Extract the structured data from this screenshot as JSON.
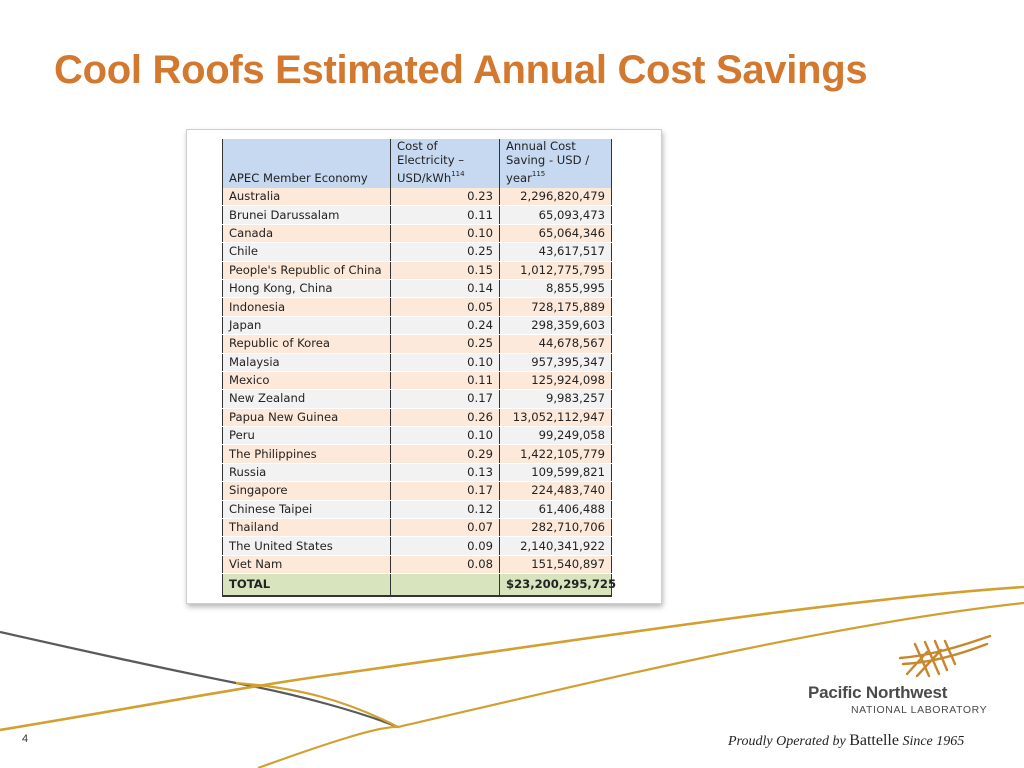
{
  "slide": {
    "title": "Cool Roofs Estimated Annual Cost Savings",
    "page_number": "4",
    "accent_color": "#D2782F"
  },
  "table": {
    "headers": {
      "economy": "APEC Member Economy",
      "cost_line1": "Cost of",
      "cost_line2": "Electricity –",
      "cost_line3": "USD/kWh",
      "cost_ref": "114",
      "saving_line1": "Annual Cost",
      "saving_line2": "Saving - USD /",
      "saving_line3": "year",
      "saving_ref": "115"
    },
    "rows": [
      {
        "economy": "Australia",
        "cost": "0.23",
        "saving": "2,296,820,479"
      },
      {
        "economy": "Brunei Darussalam",
        "cost": "0.11",
        "saving": "65,093,473"
      },
      {
        "economy": "Canada",
        "cost": "0.10",
        "saving": "65,064,346"
      },
      {
        "economy": "Chile",
        "cost": "0.25",
        "saving": "43,617,517"
      },
      {
        "economy": "People's Republic of China",
        "cost": "0.15",
        "saving": "1,012,775,795"
      },
      {
        "economy": "Hong Kong, China",
        "cost": "0.14",
        "saving": "8,855,995"
      },
      {
        "economy": "Indonesia",
        "cost": "0.05",
        "saving": "728,175,889"
      },
      {
        "economy": "Japan",
        "cost": "0.24",
        "saving": "298,359,603"
      },
      {
        "economy": "Republic of Korea",
        "cost": "0.25",
        "saving": "44,678,567"
      },
      {
        "economy": "Malaysia",
        "cost": "0.10",
        "saving": "957,395,347"
      },
      {
        "economy": "Mexico",
        "cost": "0.11",
        "saving": "125,924,098"
      },
      {
        "economy": "New Zealand",
        "cost": "0.17",
        "saving": "9,983,257"
      },
      {
        "economy": "Papua New Guinea",
        "cost": "0.26",
        "saving": "13,052,112,947"
      },
      {
        "economy": "Peru",
        "cost": "0.10",
        "saving": "99,249,058"
      },
      {
        "economy": "The Philippines",
        "cost": "0.29",
        "saving": "1,422,105,779"
      },
      {
        "economy": "Russia",
        "cost": "0.13",
        "saving": "109,599,821"
      },
      {
        "economy": "Singapore",
        "cost": "0.17",
        "saving": "224,483,740"
      },
      {
        "economy": "Chinese Taipei",
        "cost": "0.12",
        "saving": "61,406,488"
      },
      {
        "economy": "Thailand",
        "cost": "0.07",
        "saving": "282,710,706"
      },
      {
        "economy": "The United States",
        "cost": "0.09",
        "saving": "2,140,341,922"
      },
      {
        "economy": "Viet Nam",
        "cost": "0.08",
        "saving": "151,540,897"
      }
    ],
    "total": {
      "label": "TOTAL",
      "cost": "",
      "saving": "$23,200,295,725"
    },
    "colors": {
      "header_bg": "#C6D9F1",
      "row_odd_bg": "#FDE9D9",
      "row_even_bg": "#F2F2F2",
      "total_bg": "#D7E4BD"
    }
  },
  "logo": {
    "name": "Pacific Northwest",
    "sub": "NATIONAL LABORATORY",
    "icon": "pnnl-logo-icon"
  },
  "tagline": {
    "part1": "Proudly Operated by",
    "brand": "Battelle",
    "part2": "Since 1965"
  }
}
